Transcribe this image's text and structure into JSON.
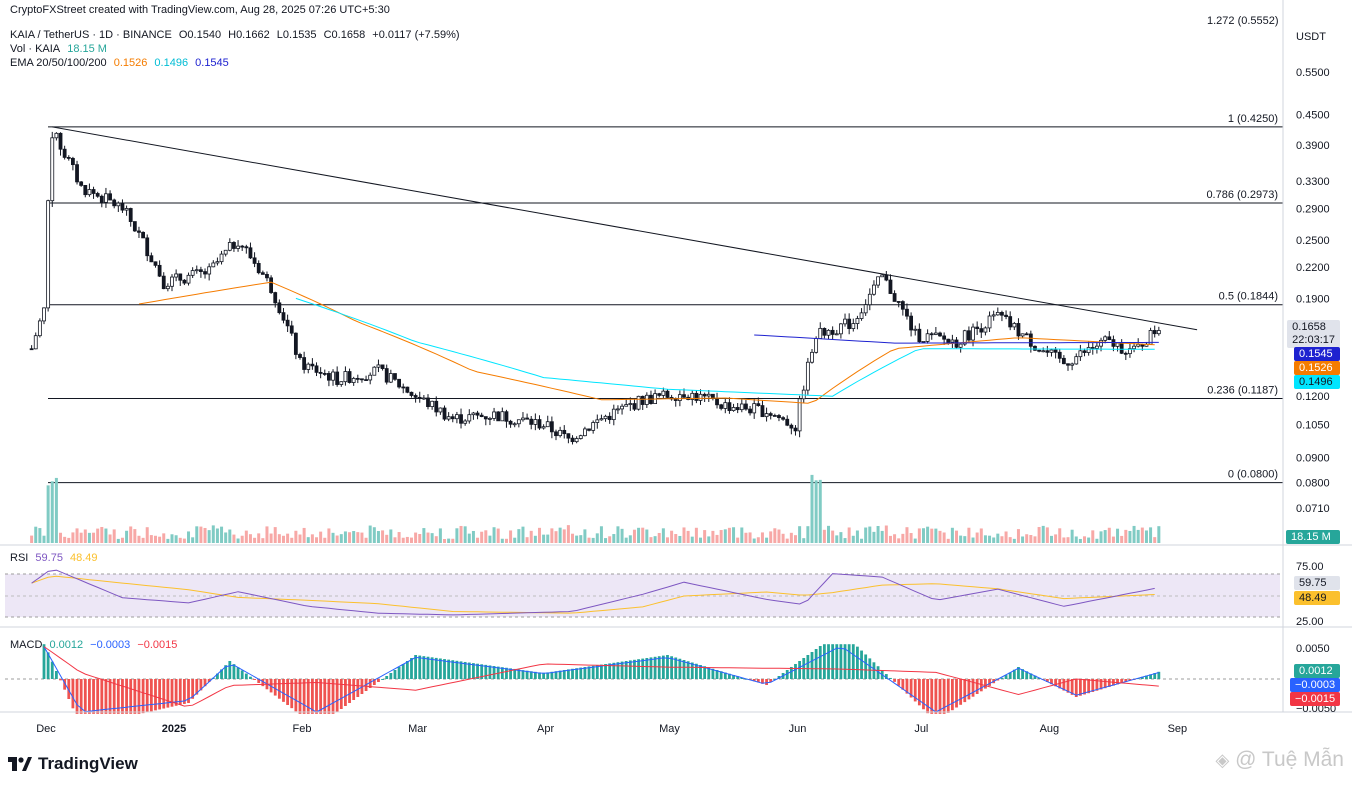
{
  "header": {
    "credit": "CryptoFXStreet created with TradingView.com, Aug 28, 2025 07:26 UTC+5:30",
    "symbol": "KAIA / TetherUS · 1D · BINANCE",
    "open": "O0.1540",
    "high": "H0.1662",
    "low": "L0.1535",
    "close": "C0.1658",
    "change": "+0.0117 (+7.59%)",
    "vol_label": "Vol · KAIA",
    "vol_value": "18.15 M",
    "ema_label": "EMA 20/50/100/200",
    "ema20": "0.1526",
    "ema50": "0.1496",
    "ema100": "0.1545",
    "top_partial": "1.272 (0.5552)"
  },
  "price_axis": {
    "currency": "USDT",
    "ticks": [
      "0.5500",
      "0.4500",
      "0.3900",
      "0.3300",
      "0.2900",
      "0.2500",
      "0.2200",
      "0.1900",
      "0.1200",
      "0.1050",
      "0.0900",
      "0.0800",
      "0.0710"
    ],
    "last_price": "0.1658",
    "countdown": "22:03:17",
    "ema100_tag": "0.1545",
    "ema20_tag": "0.1526",
    "ema50_tag": "0.1496",
    "volume_tag": "18.15 M"
  },
  "fib_labels": [
    "1 (0.4250)",
    "0.786 (0.2973)",
    "0.5 (0.1844)",
    "0.236 (0.1187)",
    "0 (0.0800)"
  ],
  "rsi": {
    "label": "RSI",
    "value": "59.75",
    "ma": "48.49",
    "tag_value": "59.75",
    "tag_ma": "48.49",
    "ticks": [
      "75.00",
      "25.00"
    ]
  },
  "macd": {
    "label": "MACD",
    "hist": "0.0012",
    "macd": "−0.0003",
    "signal": "−0.0015",
    "tag_hist": "0.0012",
    "tag_macd": "−0.0003",
    "tag_signal": "−0.0015",
    "ticks": [
      "0.0050",
      "−0.0050"
    ]
  },
  "time_axis": [
    "Dec",
    "2025",
    "Feb",
    "Mar",
    "Apr",
    "May",
    "Jun",
    "Jul",
    "Aug",
    "Sep"
  ],
  "branding": {
    "logo": "TradingView",
    "watermark": "@ Tuệ Mẫn"
  },
  "colors": {
    "up": "#26a69a",
    "down": "#ef5350",
    "ema20": "#f57c00",
    "ema50": "#00e5ff",
    "ema100": "#1e22d0",
    "rsi": "#7e57c2",
    "rsi_ma": "#fbc02d",
    "macd": "#2962ff",
    "signal": "#f23645"
  },
  "chart_data": {
    "type": "candlestick",
    "scale": "log",
    "y_range": [
      0.068,
      0.56
    ],
    "fibonacci": [
      {
        "level": "1",
        "price": 0.425
      },
      {
        "level": "0.786",
        "price": 0.2973
      },
      {
        "level": "0.5",
        "price": 0.1844
      },
      {
        "level": "0.236",
        "price": 0.1187
      },
      {
        "level": "0",
        "price": 0.08
      }
    ],
    "trendline": [
      {
        "date": "2024-12-03",
        "price": 0.425
      },
      {
        "date": "2025-08-30",
        "price": 0.164
      }
    ],
    "price_path": [
      {
        "date": "2024-11-28",
        "price": 0.15
      },
      {
        "date": "2024-12-01",
        "price": 0.18
      },
      {
        "date": "2024-12-03",
        "price": 0.415
      },
      {
        "date": "2024-12-10",
        "price": 0.32
      },
      {
        "date": "2024-12-20",
        "price": 0.29
      },
      {
        "date": "2024-12-30",
        "price": 0.205
      },
      {
        "date": "2025-01-10",
        "price": 0.215
      },
      {
        "date": "2025-01-17",
        "price": 0.25
      },
      {
        "date": "2025-01-25",
        "price": 0.2
      },
      {
        "date": "2025-02-01",
        "price": 0.14
      },
      {
        "date": "2025-02-10",
        "price": 0.13
      },
      {
        "date": "2025-02-20",
        "price": 0.135
      },
      {
        "date": "2025-03-01",
        "price": 0.12
      },
      {
        "date": "2025-03-10",
        "price": 0.108
      },
      {
        "date": "2025-03-20",
        "price": 0.11
      },
      {
        "date": "2025-04-01",
        "price": 0.105
      },
      {
        "date": "2025-04-07",
        "price": 0.098
      },
      {
        "date": "2025-04-15",
        "price": 0.108
      },
      {
        "date": "2025-04-25",
        "price": 0.118
      },
      {
        "date": "2025-05-05",
        "price": 0.122
      },
      {
        "date": "2025-05-15",
        "price": 0.115
      },
      {
        "date": "2025-05-25",
        "price": 0.112
      },
      {
        "date": "2025-06-01",
        "price": 0.104
      },
      {
        "date": "2025-06-06",
        "price": 0.16
      },
      {
        "date": "2025-06-15",
        "price": 0.17
      },
      {
        "date": "2025-06-22",
        "price": 0.21
      },
      {
        "date": "2025-06-30",
        "price": 0.16
      },
      {
        "date": "2025-07-10",
        "price": 0.155
      },
      {
        "date": "2025-07-20",
        "price": 0.175
      },
      {
        "date": "2025-07-30",
        "price": 0.15
      },
      {
        "date": "2025-08-05",
        "price": 0.14
      },
      {
        "date": "2025-08-15",
        "price": 0.155
      },
      {
        "date": "2025-08-22",
        "price": 0.148
      },
      {
        "date": "2025-08-28",
        "price": 0.1658
      }
    ],
    "ema50": [
      {
        "date": "2024-12-24",
        "price": 0.185
      },
      {
        "date": "2025-01-25",
        "price": 0.205
      },
      {
        "date": "2025-02-15",
        "price": 0.17
      },
      {
        "date": "2025-03-15",
        "price": 0.135
      },
      {
        "date": "2025-04-15",
        "price": 0.118
      },
      {
        "date": "2025-05-15",
        "price": 0.119
      },
      {
        "date": "2025-06-05",
        "price": 0.116
      },
      {
        "date": "2025-06-25",
        "price": 0.15
      },
      {
        "date": "2025-07-25",
        "price": 0.158
      },
      {
        "date": "2025-08-28",
        "price": 0.1526
      }
    ],
    "ema100": [
      {
        "date": "2025-01-31",
        "price": 0.19
      },
      {
        "date": "2025-03-01",
        "price": 0.155
      },
      {
        "date": "2025-04-01",
        "price": 0.131
      },
      {
        "date": "2025-05-01",
        "price": 0.124
      },
      {
        "date": "2025-06-10",
        "price": 0.12
      },
      {
        "date": "2025-07-01",
        "price": 0.15
      },
      {
        "date": "2025-08-28",
        "price": 0.1496
      }
    ],
    "ema200": [
      {
        "date": "2025-05-22",
        "price": 0.16
      },
      {
        "date": "2025-06-25",
        "price": 0.154
      },
      {
        "date": "2025-08-28",
        "price": 0.1545
      }
    ],
    "rsi_path": [
      {
        "date": "2024-11-28",
        "value": 65
      },
      {
        "date": "2024-12-03",
        "value": 82
      },
      {
        "date": "2024-12-20",
        "value": 48
      },
      {
        "date": "2025-01-05",
        "value": 42
      },
      {
        "date": "2025-01-17",
        "value": 55
      },
      {
        "date": "2025-02-03",
        "value": 38
      },
      {
        "date": "2025-02-20",
        "value": 30
      },
      {
        "date": "2025-03-10",
        "value": 28
      },
      {
        "date": "2025-04-08",
        "value": 32
      },
      {
        "date": "2025-04-25",
        "value": 52
      },
      {
        "date": "2025-05-05",
        "value": 66
      },
      {
        "date": "2025-05-25",
        "value": 46
      },
      {
        "date": "2025-06-03",
        "value": 40
      },
      {
        "date": "2025-06-10",
        "value": 76
      },
      {
        "date": "2025-06-22",
        "value": 72
      },
      {
        "date": "2025-07-05",
        "value": 45
      },
      {
        "date": "2025-07-20",
        "value": 58
      },
      {
        "date": "2025-08-05",
        "value": 38
      },
      {
        "date": "2025-08-28",
        "value": 59.75
      }
    ],
    "macd_hist": [
      {
        "date": "2024-12-01",
        "value": 0.006
      },
      {
        "date": "2024-12-10",
        "value": -0.008
      },
      {
        "date": "2025-01-05",
        "value": -0.004
      },
      {
        "date": "2025-01-15",
        "value": 0.003
      },
      {
        "date": "2025-02-05",
        "value": -0.008
      },
      {
        "date": "2025-03-01",
        "value": 0.004
      },
      {
        "date": "2025-04-01",
        "value": 0.001
      },
      {
        "date": "2025-05-01",
        "value": 0.004
      },
      {
        "date": "2025-05-25",
        "value": -0.001
      },
      {
        "date": "2025-06-12",
        "value": 0.008
      },
      {
        "date": "2025-07-05",
        "value": -0.007
      },
      {
        "date": "2025-07-25",
        "value": 0.002
      },
      {
        "date": "2025-08-08",
        "value": -0.003
      },
      {
        "date": "2025-08-28",
        "value": 0.0012
      }
    ],
    "volume_spikes": [
      {
        "date": "2024-12-03",
        "value": "high"
      },
      {
        "date": "2025-06-06",
        "value": "high"
      }
    ]
  }
}
